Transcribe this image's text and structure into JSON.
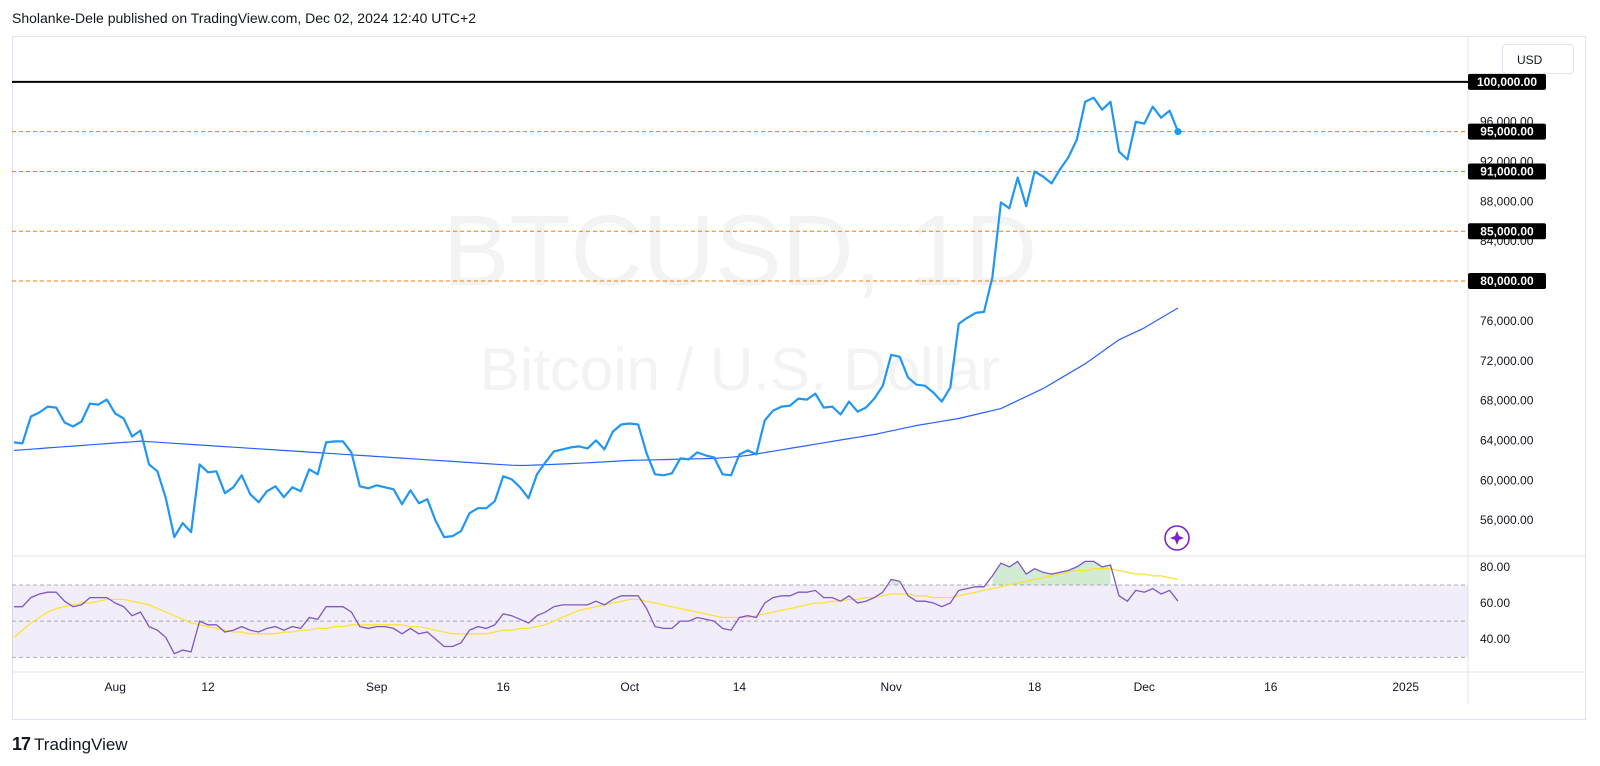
{
  "header": {
    "text": "Sholanke-Dele published on TradingView.com, Dec 02, 2024 12:40 UTC+2"
  },
  "currency_label": "USD",
  "footer": {
    "brand": "TradingView",
    "logo": "17"
  },
  "watermark": {
    "symbol": "BTCUSD, 1D",
    "name": "Bitcoin / U.S. Dollar"
  },
  "colors": {
    "price": "#2196f3",
    "ma": "#2962ff",
    "rsi": "#7e57c2",
    "rsi_ma": "#fbe238",
    "level": "#f57c00",
    "rsi_band": "#7e57c2"
  },
  "chart_data": [
    {
      "type": "line",
      "title": "BTCUSD, 1D",
      "subtitle": "Bitcoin / U.S. Dollar",
      "ylim": [
        52500,
        104500
      ],
      "y_ticks": [
        56000,
        60000,
        64000,
        68000,
        72000,
        76000,
        80000,
        84000,
        88000,
        92000,
        96000
      ],
      "y_tick_labels": [
        "56,000.00",
        "60,000.00",
        "64,000.00",
        "68,000.00",
        "72,000.00",
        "76,000.00",
        "80,000.00",
        "84,000.00",
        "88,000.00",
        "92,000.00",
        "96,000.00"
      ],
      "x_ticks": [
        {
          "label": "Aug",
          "index": 12
        },
        {
          "label": "12",
          "index": 23
        },
        {
          "label": "Sep",
          "index": 43
        },
        {
          "label": "16",
          "index": 58
        },
        {
          "label": "Oct",
          "index": 73
        },
        {
          "label": "14",
          "index": 86
        },
        {
          "label": "Nov",
          "index": 104
        },
        {
          "label": "18",
          "index": 121
        },
        {
          "label": "Dec",
          "index": 134
        },
        {
          "label": "16",
          "index": 149
        },
        {
          "label": "2025",
          "index": 165
        }
      ],
      "horizontal_levels": [
        {
          "value": 100000,
          "label": "100,000.00",
          "style": "solid"
        },
        {
          "value": 95000,
          "label": "95,000.00",
          "style": "dashed"
        },
        {
          "value": 91000,
          "label": "91,000.00",
          "style": "dashed"
        },
        {
          "value": 85000,
          "label": "85,000.00",
          "style": "dashed"
        },
        {
          "value": 80000,
          "label": "80,000.00",
          "style": "dashed"
        }
      ],
      "series": [
        {
          "name": "BTCUSD",
          "values": [
            63800,
            63700,
            66400,
            66800,
            67400,
            67300,
            65800,
            65400,
            65900,
            67700,
            67600,
            68100,
            66700,
            66200,
            64400,
            65000,
            61600,
            60900,
            58200,
            54300,
            55700,
            54800,
            61600,
            60800,
            60900,
            58700,
            59300,
            60500,
            58600,
            57800,
            58900,
            59400,
            58300,
            59300,
            58900,
            61100,
            60600,
            63800,
            63900,
            63900,
            62800,
            59400,
            59200,
            59500,
            59300,
            59100,
            57600,
            59000,
            57700,
            58100,
            55900,
            54300,
            54400,
            54900,
            56700,
            57200,
            57200,
            57900,
            60400,
            60100,
            59300,
            58200,
            60600,
            61800,
            62900,
            63100,
            63300,
            63400,
            63200,
            64000,
            63100,
            64900,
            65600,
            65700,
            65600,
            62700,
            60600,
            60500,
            60700,
            62200,
            62100,
            62800,
            62500,
            62300,
            60600,
            60500,
            62600,
            63000,
            62600,
            66000,
            67000,
            67400,
            67500,
            68200,
            68100,
            68700,
            67300,
            67400,
            66600,
            67900,
            66900,
            67300,
            68200,
            69500,
            72600,
            72400,
            70300,
            69600,
            69500,
            68800,
            67900,
            69300,
            75700,
            76300,
            76800,
            76900,
            80400,
            87900,
            87300,
            90400,
            87500,
            91000,
            90500,
            89800,
            91200,
            92400,
            94200,
            98000,
            98400,
            97200,
            98000,
            93000,
            92200,
            96000,
            95800,
            97500,
            96400,
            97100,
            95000
          ],
          "ma_values": [
            63000,
            63062,
            63124,
            63186,
            63248,
            63310,
            63372,
            63434,
            63496,
            63558,
            63620,
            63682,
            63744,
            63806,
            63868,
            63930,
            63875,
            63820,
            63765,
            63710,
            63655,
            63600,
            63545,
            63490,
            63435,
            63380,
            63325,
            63270,
            63215,
            63160,
            63105,
            63050,
            62995,
            62940,
            62885,
            62830,
            62775,
            62720,
            62665,
            62610,
            62555,
            62500,
            62445,
            62390,
            62335,
            62280,
            62225,
            62170,
            62115,
            62060,
            62005,
            61950,
            61895,
            61840,
            61785,
            61730,
            61675,
            61620,
            61565,
            61510,
            61480,
            61500,
            61530,
            61560,
            61600,
            61640,
            61680,
            61720,
            61760,
            61800,
            61850,
            61900,
            61950,
            62000,
            62020,
            62040,
            62060,
            62080,
            62100,
            62120,
            62140,
            62160,
            62180,
            62200,
            62260,
            62320,
            62400,
            62500,
            62640,
            62780,
            62920,
            63060,
            63200,
            63340,
            63480,
            63620,
            63760,
            63900,
            64040,
            64180,
            64320,
            64460,
            64600,
            64780,
            64960,
            65140,
            65320,
            65500,
            65640,
            65780,
            65920,
            66060,
            66200,
            66400,
            66600,
            66800,
            67000,
            67200,
            67600,
            68000,
            68400,
            68800,
            69200,
            69700,
            70200,
            70700,
            71200,
            71700,
            72300,
            72900,
            73500,
            74100,
            74500,
            74900,
            75300,
            75800,
            76300,
            76800,
            77300
          ]
        }
      ]
    },
    {
      "type": "line",
      "title": "RSI",
      "ylim": [
        23,
        86
      ],
      "y_ticks": [
        40,
        60,
        80
      ],
      "y_tick_labels": [
        "40.00",
        "60.00",
        "80.00"
      ],
      "bands": [
        70,
        50,
        30
      ],
      "series": [
        {
          "name": "RSI",
          "values": [
            58,
            58,
            63,
            65,
            66,
            66,
            61,
            58,
            59,
            63,
            63,
            63,
            60,
            58,
            53,
            55,
            47,
            45,
            41,
            32,
            34,
            33,
            50,
            48,
            48,
            44,
            45,
            47,
            45,
            44,
            46,
            47,
            45,
            47,
            46,
            52,
            51,
            58,
            58,
            58,
            55,
            47,
            46,
            47,
            47,
            46,
            43,
            46,
            43,
            44,
            40,
            36,
            36,
            38,
            45,
            47,
            46,
            48,
            54,
            53,
            51,
            49,
            53,
            55,
            58,
            59,
            59,
            59,
            59,
            61,
            59,
            62,
            64,
            64,
            64,
            57,
            47,
            46,
            46,
            50,
            50,
            52,
            51,
            50,
            46,
            45,
            52,
            53,
            52,
            60,
            63,
            64,
            64,
            66,
            66,
            67,
            63,
            63,
            61,
            64,
            60,
            61,
            63,
            66,
            73,
            72,
            64,
            61,
            61,
            60,
            58,
            60,
            67,
            68,
            69,
            69,
            75,
            82,
            80,
            83,
            76,
            79,
            77,
            76,
            77,
            78,
            80,
            83,
            83,
            80,
            81,
            64,
            61,
            67,
            66,
            68,
            65,
            67,
            61
          ],
          "ma_values": [
            41,
            45,
            49,
            52,
            55,
            57,
            58,
            59,
            60,
            60,
            61,
            62,
            62,
            62,
            61,
            60,
            59,
            57,
            55,
            53,
            51,
            49,
            48,
            47,
            46,
            45,
            44,
            44,
            43,
            43,
            43,
            43,
            44,
            44,
            45,
            45,
            46,
            46,
            47,
            47,
            48,
            48,
            48,
            48,
            48,
            48,
            48,
            47,
            47,
            46,
            45,
            44,
            43,
            43,
            43,
            43,
            43,
            44,
            45,
            45,
            46,
            46,
            47,
            48,
            50,
            52,
            54,
            56,
            57,
            58,
            59,
            60,
            61,
            62,
            62,
            61,
            60,
            59,
            58,
            57,
            56,
            55,
            54,
            53,
            52,
            52,
            52,
            52,
            53,
            54,
            55,
            56,
            57,
            58,
            59,
            60,
            60,
            61,
            61,
            62,
            62,
            63,
            63,
            64,
            65,
            65,
            65,
            64,
            64,
            63,
            63,
            63,
            64,
            65,
            66,
            67,
            68,
            69,
            70,
            71,
            72,
            73,
            74,
            75,
            76,
            77,
            78,
            78,
            79,
            79,
            79,
            78,
            77,
            76,
            76,
            75,
            75,
            74,
            73
          ]
        }
      ]
    }
  ]
}
